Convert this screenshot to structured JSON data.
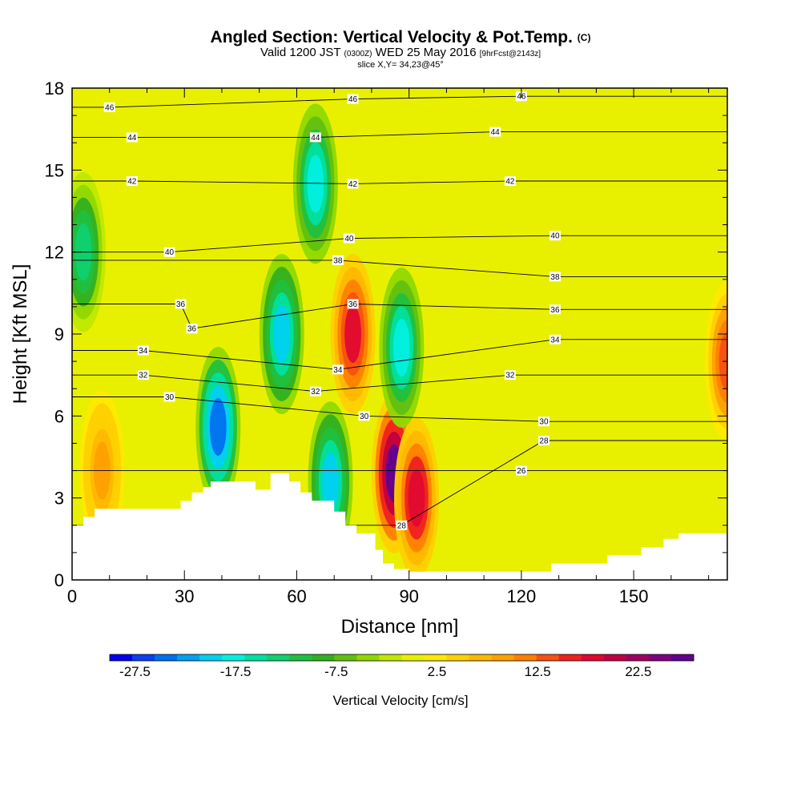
{
  "title": {
    "main": "Angled Section: Vertical Velocity & Pot.Temp.",
    "main_suffix": "(C)",
    "valid_prefix": "Valid 1200 JST",
    "valid_utc": "(0300Z)",
    "valid_date": "WED 25 May 2016",
    "forecast": "[9hrFcst@2143z]",
    "slice": "slice X,Y= 34,23@45°"
  },
  "chart_data": {
    "type": "heatmap",
    "xlabel": "Distance [nm]",
    "ylabel": "Height [Kft MSL]",
    "xlim": [
      0,
      175
    ],
    "ylim": [
      0,
      18
    ],
    "xticks": [
      0,
      30,
      60,
      90,
      120,
      150
    ],
    "yticks": [
      0,
      3,
      6,
      9,
      12,
      15,
      18
    ],
    "colorbar": {
      "label": "Vertical Velocity [cm/s]",
      "tick_labels": [
        "-27.5",
        "-17.5",
        "-7.5",
        "2.5",
        "12.5",
        "22.5"
      ],
      "tick_values": [
        -27.5,
        -17.5,
        -7.5,
        2.5,
        12.5,
        22.5
      ],
      "min": -30,
      "max": 28,
      "colors": [
        "#0000f0",
        "#0a40f0",
        "#0070f0",
        "#00a0f0",
        "#00d0f0",
        "#00f0e0",
        "#00e0a0",
        "#10d070",
        "#20c040",
        "#30b020",
        "#60c010",
        "#90d800",
        "#c0e800",
        "#e8f000",
        "#ffe800",
        "#ffd000",
        "#ffb800",
        "#ffa000",
        "#ff8000",
        "#f85010",
        "#f02020",
        "#e00830",
        "#c00040",
        "#a00060",
        "#800080",
        "#600090"
      ]
    },
    "vv_centers": [
      {
        "x": 39,
        "z": 5.6,
        "value": -25
      },
      {
        "x": 86,
        "z": 3.9,
        "value": 26
      },
      {
        "x": 75,
        "z": 9.0,
        "value": 18
      },
      {
        "x": 92,
        "z": 3.0,
        "value": 19
      },
      {
        "x": 69,
        "z": 3.6,
        "value": -20
      },
      {
        "x": 88,
        "z": 8.5,
        "value": -18
      },
      {
        "x": 56,
        "z": 9.0,
        "value": -20
      },
      {
        "x": 65,
        "z": 14.5,
        "value": -18
      },
      {
        "x": 175,
        "z": 8.0,
        "value": 14
      },
      {
        "x": 8,
        "z": 4.0,
        "value": 9
      },
      {
        "x": 3,
        "z": 12.0,
        "value": -13
      }
    ],
    "isentropes": {
      "label": "Pot.Temp.",
      "levels": [
        26,
        28,
        30,
        32,
        34,
        36,
        38,
        40,
        42,
        44,
        46
      ],
      "contour_labels": [
        {
          "value": "46",
          "x": 10,
          "z": 17.3
        },
        {
          "value": "46",
          "x": 75,
          "z": 17.6
        },
        {
          "value": "46",
          "x": 120,
          "z": 17.7
        },
        {
          "value": "44",
          "x": 16,
          "z": 16.2
        },
        {
          "value": "44",
          "x": 65,
          "z": 16.2
        },
        {
          "value": "44",
          "x": 113,
          "z": 16.4
        },
        {
          "value": "42",
          "x": 16,
          "z": 14.6
        },
        {
          "value": "42",
          "x": 75,
          "z": 14.5
        },
        {
          "value": "42",
          "x": 117,
          "z": 14.6
        },
        {
          "value": "40",
          "x": 26,
          "z": 12.0
        },
        {
          "value": "40",
          "x": 74,
          "z": 12.5
        },
        {
          "value": "40",
          "x": 129,
          "z": 12.6
        },
        {
          "value": "38",
          "x": 71,
          "z": 11.7
        },
        {
          "value": "38",
          "x": 129,
          "z": 11.1
        },
        {
          "value": "36",
          "x": 29,
          "z": 10.1
        },
        {
          "value": "36",
          "x": 75,
          "z": 10.1
        },
        {
          "value": "36",
          "x": 129,
          "z": 9.9
        },
        {
          "value": "36",
          "x": 32,
          "z": 9.2
        },
        {
          "value": "34",
          "x": 19,
          "z": 8.4
        },
        {
          "value": "34",
          "x": 71,
          "z": 7.7
        },
        {
          "value": "34",
          "x": 129,
          "z": 8.8
        },
        {
          "value": "32",
          "x": 19,
          "z": 7.5
        },
        {
          "value": "32",
          "x": 65,
          "z": 6.9
        },
        {
          "value": "32",
          "x": 117,
          "z": 7.5
        },
        {
          "value": "30",
          "x": 26,
          "z": 6.7
        },
        {
          "value": "30",
          "x": 78,
          "z": 6.0
        },
        {
          "value": "30",
          "x": 126,
          "z": 5.8
        },
        {
          "value": "28",
          "x": 126,
          "z": 5.1
        },
        {
          "value": "28",
          "x": 88,
          "z": 2.0
        },
        {
          "value": "26",
          "x": 120,
          "z": 4.0
        }
      ]
    },
    "terrain": [
      [
        0,
        2.0
      ],
      [
        3,
        2.0
      ],
      [
        3,
        2.3
      ],
      [
        6,
        2.3
      ],
      [
        6,
        2.6
      ],
      [
        29,
        2.6
      ],
      [
        29,
        2.9
      ],
      [
        32,
        2.9
      ],
      [
        32,
        3.2
      ],
      [
        35,
        3.2
      ],
      [
        35,
        3.4
      ],
      [
        37,
        3.4
      ],
      [
        37,
        3.6
      ],
      [
        49,
        3.6
      ],
      [
        49,
        3.3
      ],
      [
        53,
        3.3
      ],
      [
        53,
        3.9
      ],
      [
        58,
        3.9
      ],
      [
        58,
        3.6
      ],
      [
        61,
        3.6
      ],
      [
        61,
        3.2
      ],
      [
        64,
        3.2
      ],
      [
        64,
        2.9
      ],
      [
        70,
        2.9
      ],
      [
        70,
        2.5
      ],
      [
        73,
        2.5
      ],
      [
        73,
        2.0
      ],
      [
        76,
        2.0
      ],
      [
        76,
        1.7
      ],
      [
        81,
        1.7
      ],
      [
        81,
        1.1
      ],
      [
        83,
        1.1
      ],
      [
        83,
        0.6
      ],
      [
        86,
        0.6
      ],
      [
        86,
        0.4
      ],
      [
        90,
        0.4
      ],
      [
        90,
        0.3
      ],
      [
        128,
        0.3
      ],
      [
        128,
        0.6
      ],
      [
        143,
        0.6
      ],
      [
        143,
        0.9
      ],
      [
        152,
        0.9
      ],
      [
        152,
        1.2
      ],
      [
        158,
        1.2
      ],
      [
        158,
        1.5
      ],
      [
        162,
        1.5
      ],
      [
        162,
        1.7
      ],
      [
        175,
        1.7
      ]
    ]
  }
}
